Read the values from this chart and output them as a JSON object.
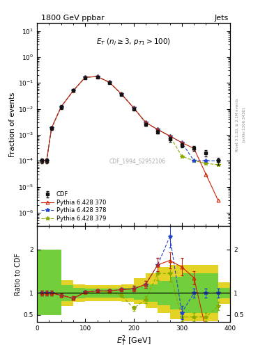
{
  "title": "1800 GeV ppbar",
  "title_right": "Jets",
  "annotation": "$E_T$ ($n_j \\geq 3$, $p_{T1}>100$)",
  "watermark": "CDF_1994_S2952106",
  "xlabel": "$E_T^2$ [GeV]",
  "ylabel_top": "Fraction of events",
  "ylabel_bottom": "Ratio to CDF",
  "right_label": "Rivet 3.1.10, ≥ 2.1M events",
  "right_label2": "[arXiv:1306.3436]",
  "xlim": [
    0,
    400
  ],
  "cdf_x": [
    10,
    20,
    30,
    50,
    75,
    100,
    125,
    150,
    175,
    200,
    225,
    250,
    275,
    300,
    325,
    350,
    375
  ],
  "cdf_y": [
    0.0001,
    0.0001,
    0.0018,
    0.012,
    0.05,
    0.16,
    0.17,
    0.1,
    0.035,
    0.01,
    0.0025,
    0.0013,
    0.0007,
    0.0004,
    0.0003,
    0.0002,
    0.0001
  ],
  "cdf_yerr": [
    2e-05,
    2e-05,
    0.0003,
    0.002,
    0.005,
    0.008,
    0.008,
    0.005,
    0.002,
    0.0008,
    0.0003,
    0.0002,
    0.00015,
    8e-05,
    6e-05,
    5e-05,
    3e-05
  ],
  "py370_x": [
    10,
    20,
    30,
    50,
    75,
    100,
    125,
    150,
    175,
    200,
    225,
    250,
    275,
    300,
    325,
    350,
    375
  ],
  "py370_y": [
    0.0001,
    0.0001,
    0.0018,
    0.012,
    0.05,
    0.165,
    0.175,
    0.105,
    0.037,
    0.011,
    0.003,
    0.0016,
    0.0009,
    0.0005,
    0.0003,
    3e-05,
    3e-06
  ],
  "py378_x": [
    10,
    20,
    30,
    50,
    75,
    100,
    125,
    150,
    175,
    200,
    225,
    250,
    275,
    300,
    325,
    350,
    375
  ],
  "py378_y": [
    0.0001,
    0.0001,
    0.0018,
    0.012,
    0.05,
    0.165,
    0.175,
    0.105,
    0.037,
    0.011,
    0.003,
    0.0016,
    0.0009,
    0.0005,
    0.0001,
    0.0001,
    0.0001
  ],
  "py379_x": [
    10,
    20,
    30,
    50,
    75,
    100,
    125,
    150,
    175,
    200,
    225,
    250,
    275,
    300,
    325,
    350,
    375
  ],
  "py379_y": [
    0.0001,
    0.0001,
    0.0018,
    0.012,
    0.05,
    0.165,
    0.175,
    0.105,
    0.037,
    0.011,
    0.003,
    0.0016,
    0.0009,
    0.00015,
    0.0001,
    8e-05,
    7e-05
  ],
  "ratio_x": [
    10,
    20,
    30,
    50,
    75,
    100,
    125,
    150,
    175,
    200,
    225,
    250,
    275,
    300,
    325,
    350,
    375
  ],
  "ratio370_y": [
    1.0,
    1.0,
    1.0,
    0.95,
    0.88,
    1.02,
    1.05,
    1.05,
    1.08,
    1.1,
    1.2,
    1.65,
    1.75,
    1.6,
    1.35,
    0.15,
    0.03
  ],
  "ratio370_e": [
    0.05,
    0.05,
    0.05,
    0.04,
    0.04,
    0.03,
    0.03,
    0.03,
    0.04,
    0.06,
    0.08,
    0.15,
    0.18,
    0.2,
    0.15,
    0.08,
    0.02
  ],
  "ratio378_y": [
    1.0,
    1.0,
    1.0,
    0.95,
    0.88,
    1.02,
    1.05,
    1.05,
    1.08,
    1.1,
    1.2,
    1.65,
    2.3,
    0.55,
    1.0,
    1.0,
    1.0
  ],
  "ratio378_e": [
    0.05,
    0.05,
    0.05,
    0.04,
    0.04,
    0.03,
    0.03,
    0.03,
    0.04,
    0.06,
    0.08,
    0.15,
    0.25,
    0.15,
    0.1,
    0.1,
    0.1
  ],
  "ratio379_y": [
    1.0,
    1.0,
    1.0,
    0.95,
    0.88,
    1.02,
    1.05,
    1.02,
    0.95,
    0.65,
    0.85,
    1.45,
    1.45,
    0.45,
    0.45,
    0.45,
    0.7
  ],
  "ratio379_e": [
    0.05,
    0.05,
    0.05,
    0.04,
    0.04,
    0.03,
    0.03,
    0.03,
    0.04,
    0.06,
    0.08,
    0.15,
    0.18,
    0.1,
    0.1,
    0.1,
    0.1
  ],
  "band_edges": [
    0,
    25,
    50,
    75,
    100,
    125,
    150,
    175,
    200,
    225,
    250,
    275,
    300,
    325,
    375,
    400
  ],
  "yellow_lo": [
    0.5,
    0.5,
    0.7,
    0.8,
    0.82,
    0.82,
    0.82,
    0.8,
    0.75,
    0.65,
    0.55,
    0.4,
    0.35,
    0.35,
    0.75,
    0.75
  ],
  "yellow_hi": [
    2.0,
    2.0,
    1.3,
    1.2,
    1.18,
    1.18,
    1.18,
    1.2,
    1.35,
    1.45,
    1.6,
    1.65,
    1.65,
    1.65,
    1.25,
    1.25
  ],
  "green_lo": [
    0.5,
    0.5,
    0.82,
    0.88,
    0.9,
    0.9,
    0.9,
    0.88,
    0.85,
    0.8,
    0.72,
    0.62,
    0.55,
    0.55,
    0.88,
    0.88
  ],
  "green_hi": [
    2.0,
    2.0,
    1.18,
    1.12,
    1.1,
    1.1,
    1.1,
    1.12,
    1.15,
    1.2,
    1.28,
    1.38,
    1.45,
    1.45,
    1.12,
    1.12
  ],
  "color_cdf": "#111111",
  "color_py370": "#cc2200",
  "color_py378": "#2244cc",
  "color_py379": "#88aa00",
  "color_green": "#44cc44",
  "color_yellow": "#ddcc00",
  "plot_bg": "#ffffff"
}
